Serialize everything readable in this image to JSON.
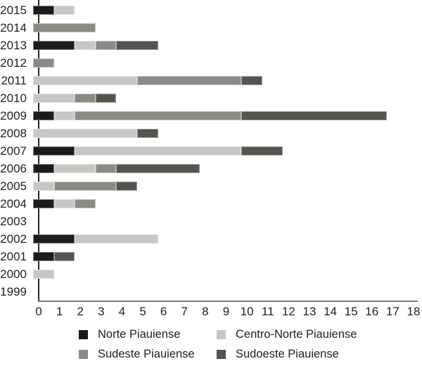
{
  "chart_data": {
    "type": "bar",
    "orientation": "horizontal",
    "stacked": true,
    "title": "",
    "xlabel": "",
    "ylabel": "",
    "grid": false,
    "legend_position": "bottom",
    "xlim": [
      0,
      18
    ],
    "xticks": [
      "0",
      "1",
      "2",
      "3",
      "4",
      "5",
      "6",
      "7",
      "8",
      "9",
      "10",
      "11",
      "12",
      "13",
      "14",
      "15",
      "16",
      "17",
      "18"
    ],
    "categories": [
      "2015",
      "2014",
      "2013",
      "2012",
      "2011",
      "2010",
      "2009",
      "2008",
      "2007",
      "2006",
      "2005",
      "2004",
      "2003",
      "2002",
      "2001",
      "2000",
      "1999"
    ],
    "series": [
      {
        "name": "Norte Piauiense",
        "color": "#1b1b1b",
        "values": [
          1,
          0,
          2,
          0,
          0,
          0,
          1,
          0,
          2,
          1,
          0,
          1,
          0,
          2,
          1,
          0,
          0
        ]
      },
      {
        "name": "Centro-Norte Piauiense",
        "color": "#c8c6c3",
        "values": [
          1,
          0,
          1,
          0,
          5,
          2,
          1,
          5,
          8,
          2,
          1,
          1,
          0,
          4,
          0,
          1,
          0
        ]
      },
      {
        "name": "Sudeste Piauiense",
        "color": "#8b8a84",
        "values": [
          0,
          3,
          1,
          1,
          5,
          1,
          8,
          0,
          0,
          1,
          3,
          1,
          0,
          0,
          0,
          0,
          0
        ]
      },
      {
        "name": "Sudoeste Piauiense",
        "color": "#55544e",
        "values": [
          0,
          0,
          2,
          0,
          1,
          1,
          7,
          1,
          2,
          4,
          1,
          0,
          0,
          0,
          1,
          0,
          0
        ]
      }
    ],
    "totals": [
      2,
      3,
      6,
      1,
      11,
      4,
      17,
      6,
      12,
      8,
      5,
      3,
      0,
      6,
      2,
      1,
      0
    ],
    "axis_colors": {
      "y_axis_line": "#262626",
      "x_axis_line": "#787878"
    }
  }
}
